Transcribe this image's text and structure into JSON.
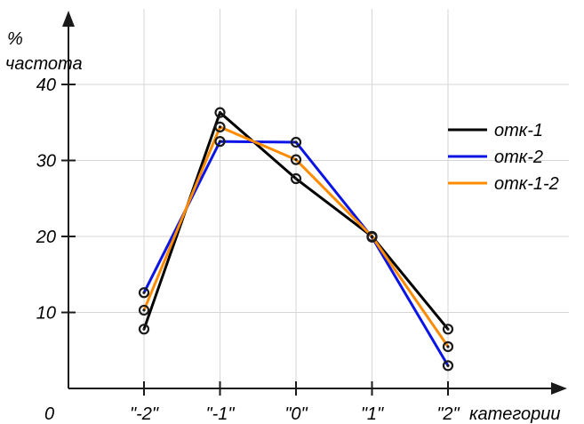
{
  "chart_data": {
    "type": "line",
    "ylabel_symbol": "%",
    "ylabel": "частота",
    "xlabel": "категории",
    "origin_label": "0",
    "categories": [
      "\"-2\"",
      "\"-1\"",
      "\"0\"",
      "\"1\"",
      "\"2\""
    ],
    "y_ticks": [
      10,
      20,
      30,
      40
    ],
    "ylim": [
      0,
      47
    ],
    "grid": true,
    "legend_position": "right",
    "series": [
      {
        "name": "отк-1",
        "color": "#000000",
        "values": [
          7.8,
          36.3,
          27.6,
          20.0,
          7.8
        ]
      },
      {
        "name": "отк-2",
        "color": "#0a14e6",
        "values": [
          12.6,
          32.5,
          32.4,
          19.9,
          3.0
        ]
      },
      {
        "name": "отк-1-2",
        "color": "#ff8c00",
        "values": [
          10.3,
          34.4,
          30.1,
          20.0,
          5.5
        ]
      }
    ]
  }
}
